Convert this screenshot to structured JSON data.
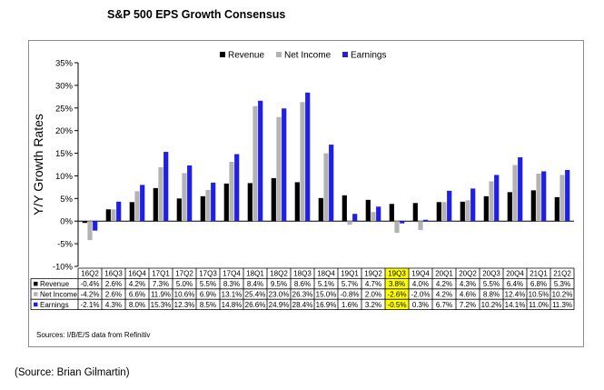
{
  "title": "S&P 500 EPS Growth Consensus",
  "source_note": "Sources: I/B/E/S data from Refinitiv",
  "credit": "(Source: Brian Gilmartin)",
  "colors": {
    "Revenue": "#000000",
    "Net Income": "#b3b3b3",
    "Earnings": "#1f1fe6",
    "highlight": "#ffff00"
  },
  "chart_data": {
    "type": "bar",
    "ylabel": "Y/Y Growth Rates",
    "ylim": [
      -10,
      35
    ],
    "yticks": [
      "-10%",
      "-5%",
      "0%",
      "5%",
      "10%",
      "15%",
      "20%",
      "25%",
      "30%",
      "35%"
    ],
    "ytick_values": [
      -10,
      -5,
      0,
      5,
      10,
      15,
      20,
      25,
      30,
      35
    ],
    "legend_position": "top-center",
    "highlight_category": "19Q3",
    "categories": [
      "16Q2",
      "16Q3",
      "16Q4",
      "17Q1",
      "17Q2",
      "17Q3",
      "17Q4",
      "18Q1",
      "18Q2",
      "18Q3",
      "18Q4",
      "19Q1",
      "19Q2",
      "19Q3",
      "19Q4",
      "20Q1",
      "20Q2",
      "20Q3",
      "20Q4",
      "21Q1",
      "21Q2"
    ],
    "series": [
      {
        "name": "Revenue",
        "values": [
          -0.4,
          2.6,
          4.2,
          7.3,
          5.0,
          5.5,
          8.3,
          8.4,
          9.5,
          8.6,
          5.1,
          5.7,
          4.7,
          3.8,
          4.0,
          4.2,
          4.3,
          5.5,
          6.4,
          6.8,
          5.3
        ],
        "labels": [
          "-0.4%",
          "2.6%",
          "4.2%",
          "7.3%",
          "5.0%",
          "5.5%",
          "8.3%",
          "8.4%",
          "9.5%",
          "8.6%",
          "5.1%",
          "5.7%",
          "4.7%",
          "3.8%",
          "4.0%",
          "4.2%",
          "4.3%",
          "5.5%",
          "6.4%",
          "6.8%",
          "5.3%"
        ]
      },
      {
        "name": "Net Income",
        "values": [
          -4.2,
          2.6,
          6.6,
          11.9,
          10.6,
          6.9,
          13.1,
          25.4,
          23.0,
          26.3,
          15.0,
          -0.8,
          2.0,
          -2.6,
          -2.0,
          4.2,
          4.6,
          8.8,
          12.4,
          10.5,
          10.2
        ],
        "labels": [
          "-4.2%",
          "2.6%",
          "6.6%",
          "11.9%",
          "10.6%",
          "6.9%",
          "13.1%",
          "25.4%",
          "23.0%",
          "26.3%",
          "15.0%",
          "-0.8%",
          "2.0%",
          "-2.6%",
          "-2.0%",
          "4.2%",
          "4.6%",
          "8.8%",
          "12.4%",
          "10.5%",
          "10.2%"
        ]
      },
      {
        "name": "Earnings",
        "values": [
          -2.1,
          4.3,
          8.0,
          15.3,
          12.3,
          8.5,
          14.8,
          26.6,
          24.9,
          28.4,
          16.9,
          1.6,
          3.2,
          -0.5,
          0.3,
          6.7,
          7.2,
          10.2,
          14.1,
          11.0,
          11.3
        ],
        "labels": [
          "-2.1%",
          "4.3%",
          "8.0%",
          "15.3%",
          "12.3%",
          "8.5%",
          "14.8%",
          "26.6%",
          "24.9%",
          "28.4%",
          "16.9%",
          "1.6%",
          "3.2%",
          "-0.5%",
          "0.3%",
          "6.7%",
          "7.2%",
          "10.2%",
          "14.1%",
          "11.0%",
          "11.3%"
        ]
      }
    ]
  }
}
